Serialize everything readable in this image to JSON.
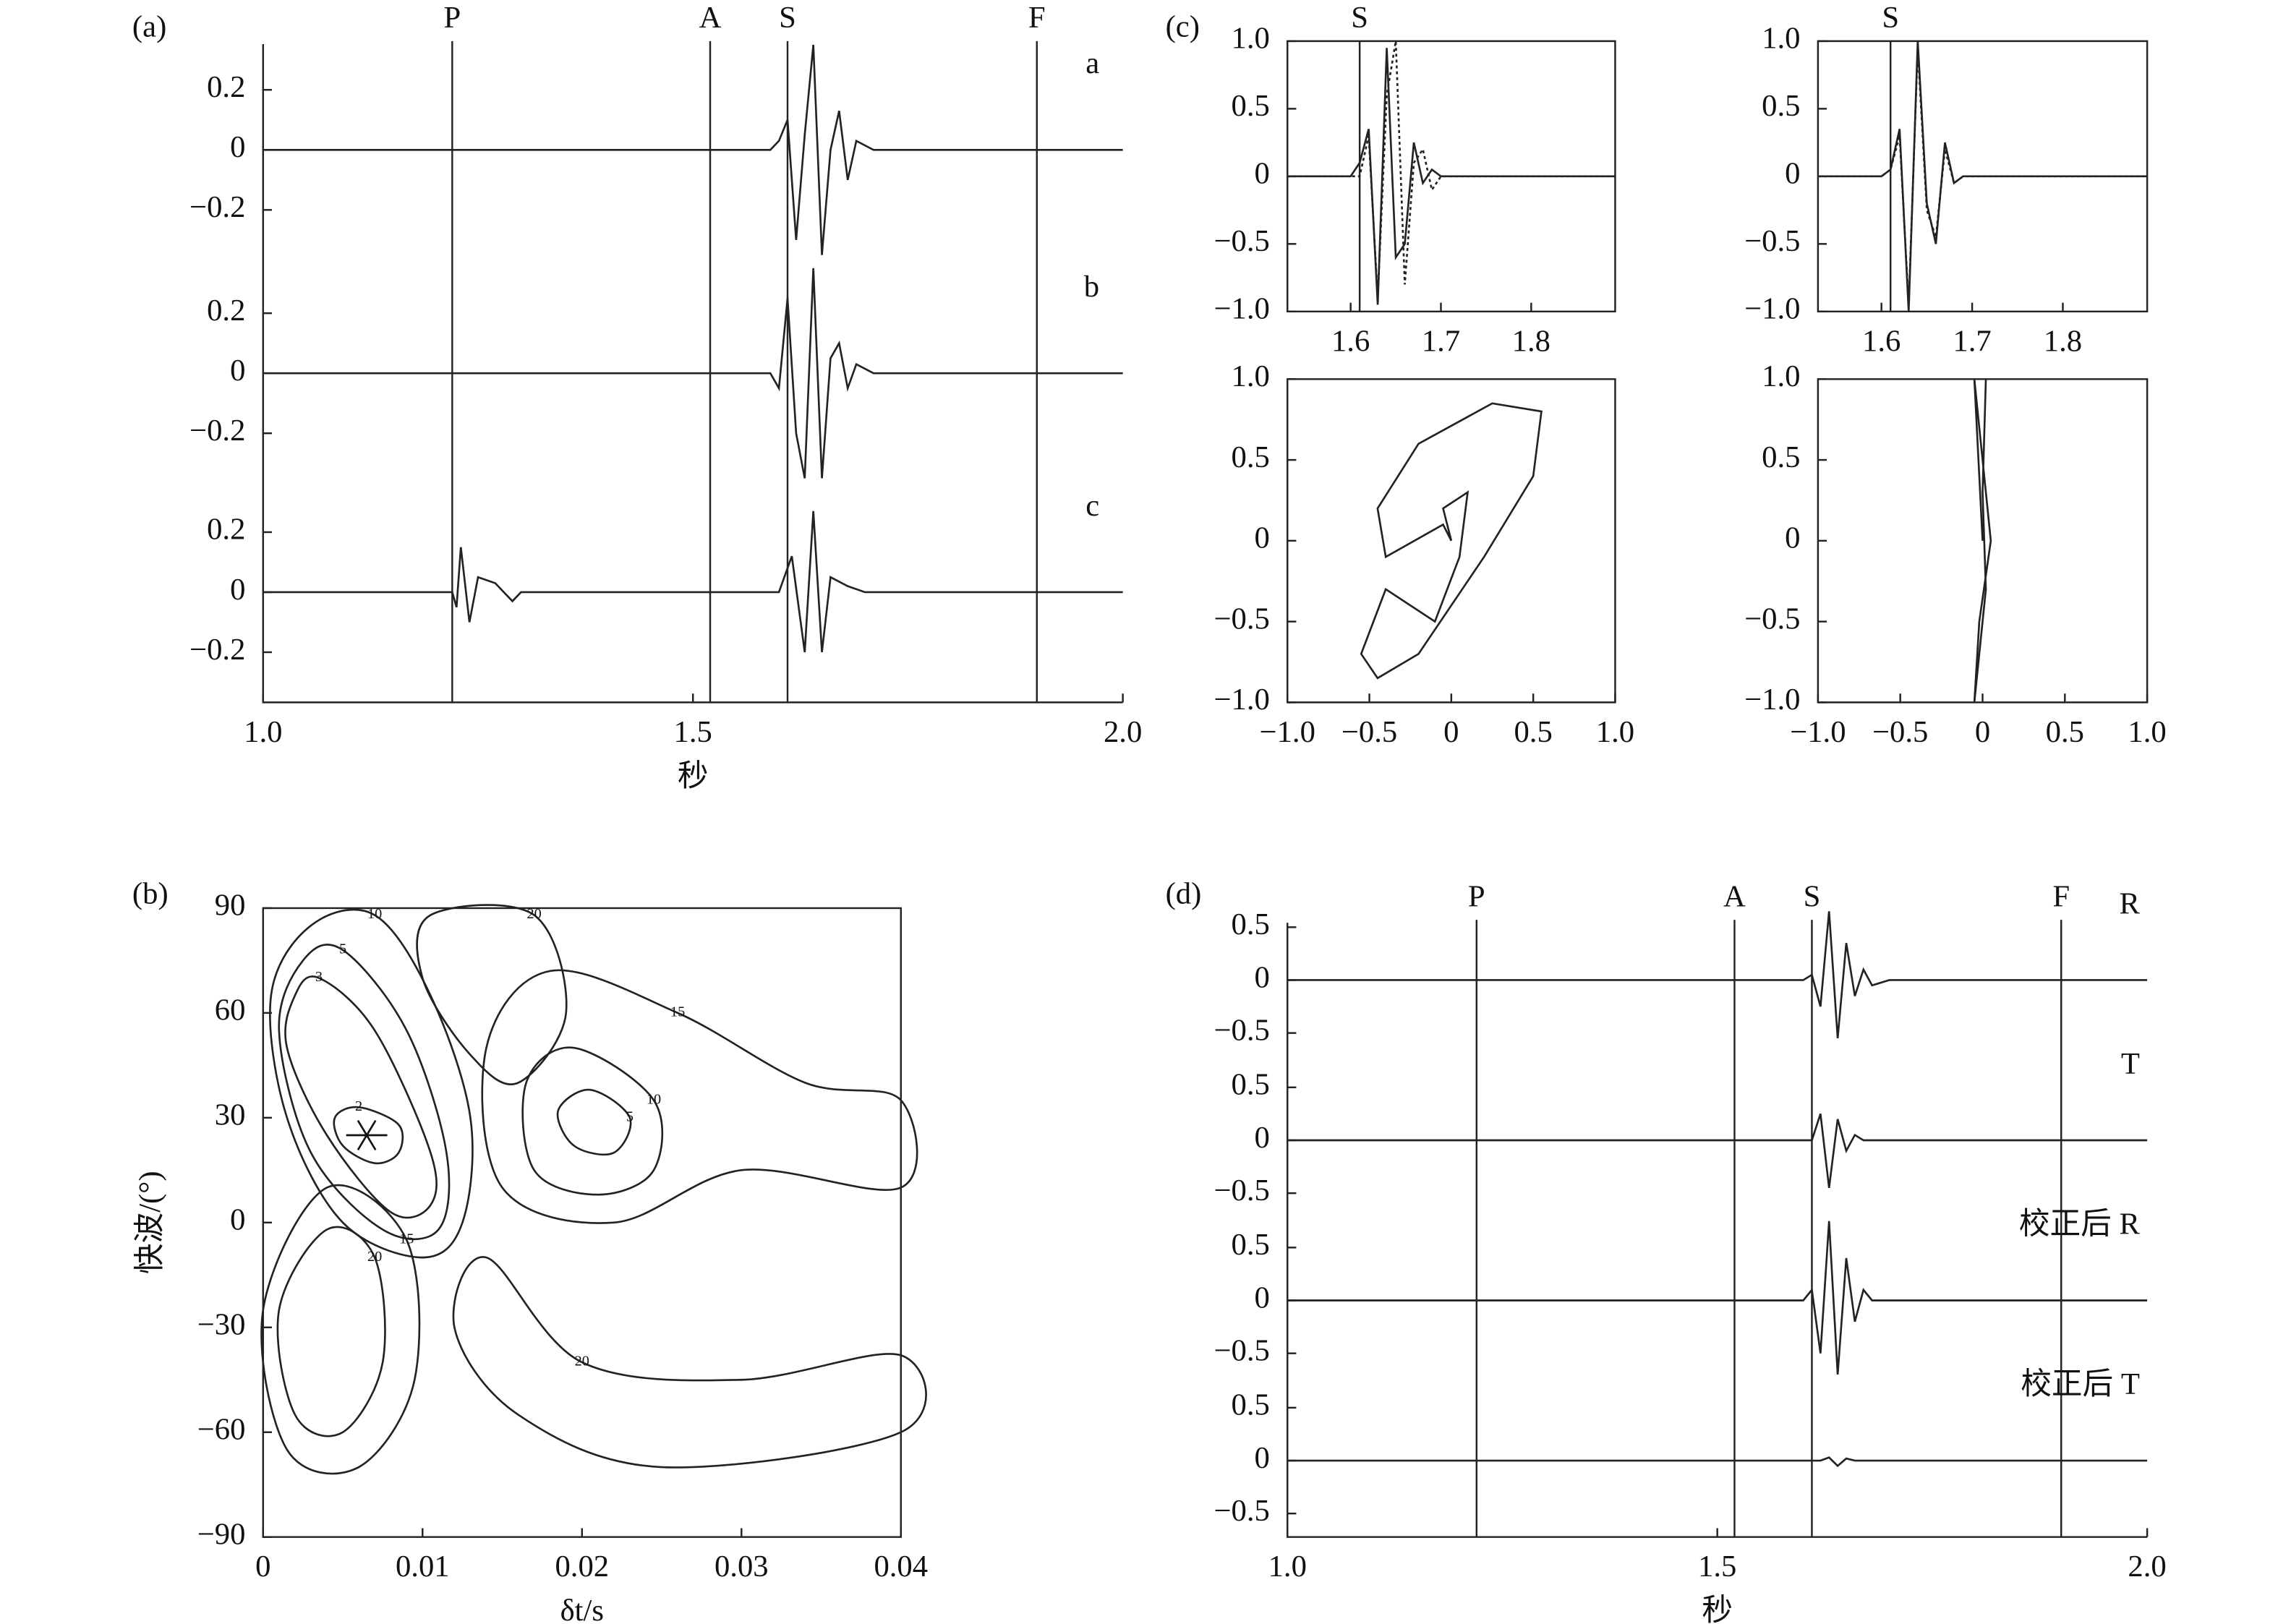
{
  "chart_data": [
    {
      "type": "multitrace",
      "panel_label": "(a)",
      "xlim": [
        1.0,
        2.0
      ],
      "xticks": [
        {
          "value": 1.0,
          "label": "1.0"
        },
        1.5,
        {
          "value": 2.0,
          "label": "2.0"
        }
      ],
      "xlabel": "秒",
      "markers": [
        {
          "label": "P",
          "x": 1.22
        },
        {
          "label": "A",
          "x": 1.52
        },
        {
          "label": "S",
          "x": 1.61
        },
        {
          "label": "F",
          "x": 1.9
        }
      ],
      "traces": [
        {
          "name": "a",
          "ylim": [
            -0.35,
            0.35
          ],
          "yticks": [
            0.2,
            0,
            {
              "value": -0.2,
              "label": "−0.2"
            }
          ],
          "x": [
            1.0,
            1.59,
            1.6,
            1.61,
            1.62,
            1.63,
            1.64,
            1.65,
            1.66,
            1.67,
            1.68,
            1.69,
            1.71,
            2.0
          ],
          "values": [
            0,
            0,
            0.03,
            0.1,
            -0.3,
            0.05,
            0.35,
            -0.35,
            0.0,
            0.13,
            -0.1,
            0.03,
            0,
            0
          ]
        },
        {
          "name": "b",
          "ylim": [
            -0.35,
            0.35
          ],
          "yticks": [
            0.2,
            0,
            {
              "value": -0.2,
              "label": "−0.2"
            }
          ],
          "x": [
            1.0,
            1.59,
            1.6,
            1.61,
            1.62,
            1.63,
            1.64,
            1.65,
            1.66,
            1.67,
            1.68,
            1.69,
            1.71,
            2.0
          ],
          "values": [
            0,
            0,
            -0.05,
            0.25,
            -0.2,
            -0.35,
            0.35,
            -0.35,
            0.05,
            0.1,
            -0.05,
            0.03,
            0,
            0
          ]
        },
        {
          "name": "c",
          "ylim": [
            -0.35,
            0.35
          ],
          "yticks": [
            0.2,
            0,
            {
              "value": -0.2,
              "label": "−0.2"
            }
          ],
          "x": [
            1.0,
            1.22,
            1.225,
            1.23,
            1.24,
            1.25,
            1.27,
            1.29,
            1.3,
            1.5,
            1.6,
            1.615,
            1.63,
            1.64,
            1.65,
            1.66,
            1.68,
            1.7,
            2.0
          ],
          "values": [
            0,
            0,
            -0.05,
            0.15,
            -0.1,
            0.05,
            0.03,
            -0.03,
            0,
            0,
            0,
            0.12,
            -0.2,
            0.27,
            -0.2,
            0.05,
            0.02,
            0,
            0
          ]
        }
      ]
    },
    {
      "type": "line",
      "panel_label": "(c)",
      "xlim": [
        1.53,
        1.893
      ],
      "xticks": [
        1.6,
        1.7,
        1.8
      ],
      "ylim": [
        -1,
        1
      ],
      "yticks": [
        {
          "value": 1,
          "label": "1.0"
        },
        0.5,
        0,
        {
          "value": -0.5,
          "label": "−0.5"
        },
        {
          "value": -1,
          "label": "−1.0"
        }
      ],
      "markers": [
        {
          "label": "S",
          "x": 1.61
        }
      ],
      "x": [
        1.53,
        1.6,
        1.61,
        1.62,
        1.63,
        1.64,
        1.65,
        1.66,
        1.67,
        1.68,
        1.69,
        1.7,
        1.893
      ],
      "series": [
        {
          "dash": "solid",
          "color": "#222222",
          "values": [
            0,
            0,
            0.1,
            0.35,
            -0.95,
            0.95,
            -0.6,
            -0.5,
            0.25,
            -0.05,
            0.05,
            0,
            0
          ]
        },
        {
          "dash": "dotted",
          "color": "#222222",
          "values": [
            0,
            0,
            0,
            0.3,
            -0.9,
            0.6,
            1.0,
            -0.8,
            0.1,
            0.2,
            -0.1,
            0,
            0
          ]
        }
      ]
    },
    {
      "type": "line",
      "xlim": [
        1.53,
        1.893
      ],
      "xticks": [
        1.6,
        1.7,
        1.8
      ],
      "ylim": [
        -1,
        1
      ],
      "yticks": [
        {
          "value": 1,
          "label": "1.0"
        },
        0.5,
        0,
        {
          "value": -0.5,
          "label": "−0.5"
        },
        {
          "value": -1,
          "label": "−1.0"
        }
      ],
      "markers": [
        {
          "label": "S",
          "x": 1.61
        }
      ],
      "x": [
        1.53,
        1.6,
        1.61,
        1.62,
        1.63,
        1.64,
        1.65,
        1.66,
        1.67,
        1.68,
        1.69,
        1.7,
        1.893
      ],
      "series": [
        {
          "dash": "solid",
          "color": "#222222",
          "values": [
            0,
            0,
            0.05,
            0.35,
            -1.0,
            1.0,
            -0.2,
            -0.5,
            0.25,
            -0.05,
            0,
            0,
            0
          ]
        },
        {
          "dash": "dotted",
          "color": "#222222",
          "values": [
            0,
            0,
            0.05,
            0.3,
            -0.95,
            0.95,
            -0.25,
            -0.45,
            0.2,
            -0.05,
            0,
            0,
            0
          ]
        }
      ]
    },
    {
      "type": "line",
      "xlim": [
        -1,
        1
      ],
      "ylim": [
        -1,
        1
      ],
      "xticks": [
        {
          "value": -1,
          "label": "−1.0"
        },
        {
          "value": -0.5,
          "label": "−0.5"
        },
        0,
        0.5,
        {
          "value": 1,
          "label": "1.0"
        }
      ],
      "yticks": [
        {
          "value": 1,
          "label": "1.0"
        },
        0.5,
        0,
        {
          "value": -0.5,
          "label": "−0.5"
        },
        {
          "value": -1,
          "label": "−1.0"
        }
      ],
      "series": [
        {
          "dash": "solid",
          "color": "#222222",
          "x": [
            0,
            -0.05,
            0.1,
            0.05,
            -0.1,
            -0.4,
            -0.55,
            -0.45,
            -0.2,
            0.2,
            0.5,
            0.55,
            0.25,
            -0.2,
            -0.45,
            -0.4,
            -0.05,
            0
          ],
          "values": [
            0,
            0.2,
            0.3,
            -0.1,
            -0.5,
            -0.3,
            -0.7,
            -0.85,
            -0.7,
            -0.1,
            0.4,
            0.8,
            0.85,
            0.6,
            0.2,
            -0.1,
            0.1,
            0
          ]
        }
      ]
    },
    {
      "type": "line",
      "xlim": [
        -1,
        1
      ],
      "ylim": [
        -1,
        1
      ],
      "xticks": [
        {
          "value": -1,
          "label": "−1.0"
        },
        {
          "value": -0.5,
          "label": "−0.5"
        },
        0,
        0.5,
        {
          "value": 1,
          "label": "1.0"
        }
      ],
      "yticks": [
        {
          "value": 1,
          "label": "1.0"
        },
        0.5,
        0,
        {
          "value": -0.5,
          "label": "−0.5"
        },
        {
          "value": -1,
          "label": "−1.0"
        }
      ],
      "series": [
        {
          "dash": "solid",
          "color": "#222222",
          "x": [
            0,
            -0.05,
            0.0,
            0.05,
            -0.02,
            -0.05,
            0.02,
            0,
            0.02
          ],
          "values": [
            0,
            1.0,
            0.5,
            0,
            -0.5,
            -1.0,
            -0.3,
            0.3,
            1.0
          ]
        }
      ]
    },
    {
      "type": "contour",
      "panel_label": "(b)",
      "xlim": [
        0,
        0.04
      ],
      "ylim": [
        -90,
        90
      ],
      "xticks": [
        0,
        0.01,
        0.02,
        0.03,
        0.04
      ],
      "yticks": [
        90,
        60,
        30,
        0,
        {
          "value": -30,
          "label": "−30"
        },
        {
          "value": -60,
          "label": "−60"
        },
        {
          "value": -90,
          "label": "−90"
        }
      ],
      "xlabel": "δt/s",
      "ylabel": "快波/(°)",
      "minimum": {
        "x": 0.0065,
        "y": 25
      },
      "contours": [
        {
          "level": 2,
          "x": [
            0.0045,
            0.006,
            0.0085,
            0.0085,
            0.007,
            0.005
          ],
          "y": [
            30,
            33,
            28,
            20,
            17,
            22
          ]
        },
        {
          "level": 3,
          "x": [
            0.002,
            0.0035,
            0.007,
            0.0105,
            0.0105,
            0.008,
            0.004,
            0.0015
          ],
          "y": [
            65,
            70,
            55,
            20,
            5,
            3,
            25,
            50
          ]
        },
        {
          "level": 5,
          "x": [
            0.0025,
            0.005,
            0.009,
            0.0115,
            0.011,
            0.0075,
            0.003,
            0.001
          ],
          "y": [
            75,
            78,
            55,
            20,
            -2,
            -2,
            20,
            55
          ]
        },
        {
          "level": 10,
          "x": [
            0.003,
            0.007,
            0.0105,
            0.013,
            0.0125,
            0.01,
            0.005,
            0.0015,
            0.0005
          ],
          "y": [
            85,
            88,
            65,
            30,
            0,
            -10,
            0,
            30,
            65
          ]
        },
        {
          "level": 20,
          "x": [
            0.004,
            0.007,
            0.0075,
            0.005,
            0.002,
            0.001
          ],
          "y": [
            -2,
            -10,
            -40,
            -60,
            -55,
            -25
          ]
        },
        {
          "level": 15,
          "x": [
            0.004,
            0.009,
            0.0095,
            0.006,
            0.0015,
            0.0
          ],
          "y": [
            10,
            -5,
            -45,
            -70,
            -65,
            -25
          ]
        },
        {
          "level": 20,
          "x": [
            0.0105,
            0.017,
            0.019,
            0.016,
            0.013,
            0.01
          ],
          "y": [
            88,
            88,
            60,
            40,
            48,
            70
          ]
        },
        {
          "level": 5,
          "x": [
            0.0205,
            0.023,
            0.022,
            0.0195,
            0.0185
          ],
          "y": [
            38,
            30,
            20,
            22,
            32
          ]
        },
        {
          "level": 10,
          "x": [
            0.0195,
            0.0245,
            0.0245,
            0.021,
            0.017,
            0.0165
          ],
          "y": [
            50,
            35,
            15,
            8,
            15,
            40
          ]
        },
        {
          "level": 15,
          "x": [
            0.018,
            0.026,
            0.034,
            0.04,
            0.04,
            0.03,
            0.022,
            0.015,
            0.014
          ],
          "y": [
            72,
            60,
            40,
            35,
            10,
            15,
            0,
            10,
            50
          ]
        },
        {
          "level": 20,
          "x": [
            0.014,
            0.02,
            0.03,
            0.04,
            0.04,
            0.025,
            0.016,
            0.012
          ],
          "y": [
            -10,
            -40,
            -45,
            -38,
            -60,
            -70,
            -55,
            -30
          ]
        }
      ]
    },
    {
      "type": "multitrace",
      "panel_label": "(d)",
      "xlim": [
        1.0,
        2.0
      ],
      "xticks": [
        {
          "value": 1.0,
          "label": "1.0"
        },
        1.5,
        {
          "value": 2.0,
          "label": "2.0"
        }
      ],
      "xlabel": "秒",
      "markers": [
        {
          "label": "P",
          "x": 1.22
        },
        {
          "label": "A",
          "x": 1.52
        },
        {
          "label": "S",
          "x": 1.61
        },
        {
          "label": "F",
          "x": 1.9
        }
      ],
      "traces": [
        {
          "name": "R",
          "ylim": [
            -0.75,
            0.75
          ],
          "yticks": [
            0.5,
            0,
            {
              "value": -0.5,
              "label": "−0.5"
            }
          ],
          "x": [
            1.0,
            1.6,
            1.61,
            1.62,
            1.63,
            1.64,
            1.65,
            1.66,
            1.67,
            1.68,
            1.7,
            2.0
          ],
          "values": [
            0,
            0,
            0.05,
            -0.25,
            0.65,
            -0.55,
            0.35,
            -0.15,
            0.1,
            -0.05,
            0,
            0
          ]
        },
        {
          "name": "T",
          "ylim": [
            -0.75,
            0.75
          ],
          "yticks": [
            0.5,
            0,
            {
              "value": -0.5,
              "label": "−0.5"
            }
          ],
          "x": [
            1.0,
            1.6,
            1.61,
            1.62,
            1.63,
            1.64,
            1.65,
            1.66,
            1.67,
            1.68,
            1.7,
            2.0
          ],
          "values": [
            0,
            0,
            0,
            0.25,
            -0.45,
            0.2,
            -0.1,
            0.05,
            0,
            0,
            0,
            0
          ]
        },
        {
          "name": "校正后 R",
          "ylim": [
            -0.75,
            0.75
          ],
          "yticks": [
            0.5,
            0,
            {
              "value": -0.5,
              "label": "−0.5"
            }
          ],
          "x": [
            1.0,
            1.6,
            1.61,
            1.62,
            1.63,
            1.64,
            1.65,
            1.66,
            1.67,
            1.68,
            1.7,
            2.0
          ],
          "values": [
            0,
            0,
            0.1,
            -0.5,
            0.75,
            -0.7,
            0.4,
            -0.2,
            0.1,
            0,
            0,
            0
          ]
        },
        {
          "name": "校正后 T",
          "ylim": [
            -0.75,
            0.75
          ],
          "yticks": [
            0.5,
            0,
            {
              "value": -0.5,
              "label": "−0.5"
            }
          ],
          "x": [
            1.0,
            1.6,
            1.61,
            1.62,
            1.63,
            1.64,
            1.65,
            1.66,
            1.67,
            1.68,
            1.7,
            2.0
          ],
          "values": [
            0,
            0,
            0,
            0,
            0.03,
            -0.05,
            0.02,
            0,
            0,
            0,
            0,
            0
          ]
        }
      ]
    }
  ]
}
